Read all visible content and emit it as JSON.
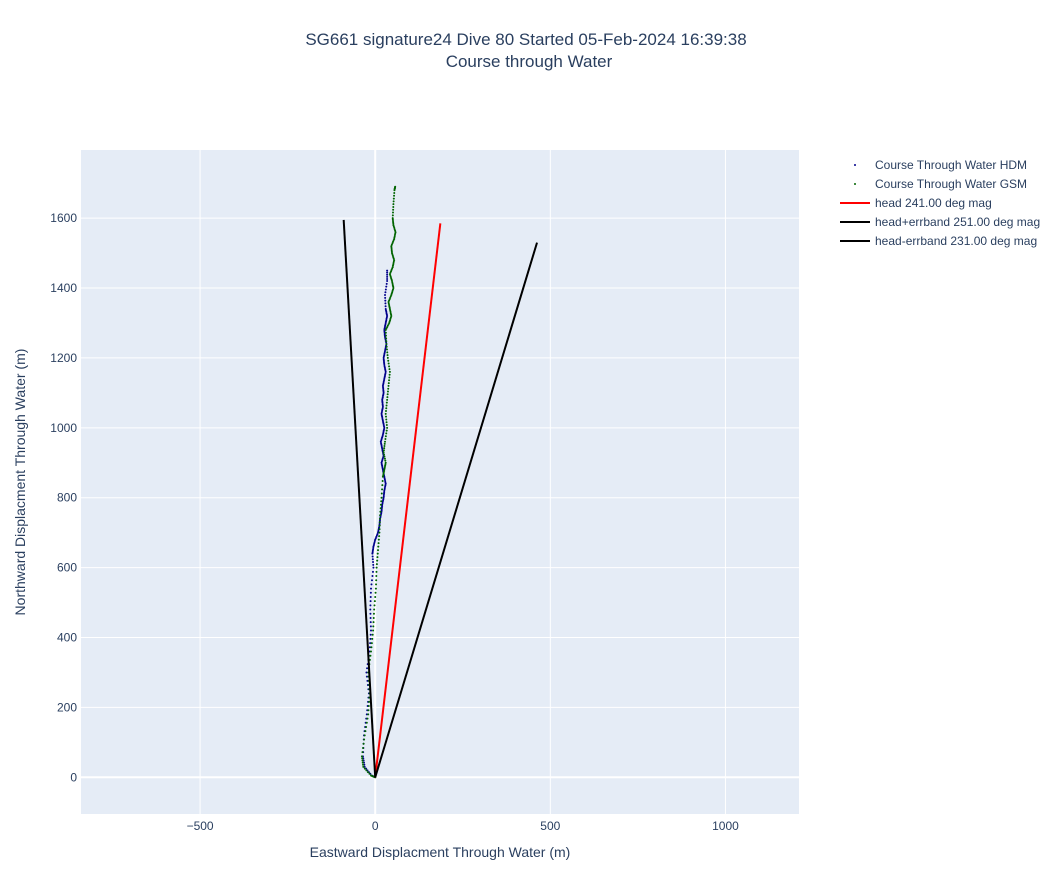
{
  "chart_data": {
    "type": "scatter",
    "title": "SG661 signature24 Dive 80 Started 05-Feb-2024 16:39:38",
    "subtitle": "Course through Water",
    "xlabel": "Eastward Displacment Through Water (m)",
    "ylabel": "Northward Displacment Through Water (m)",
    "xlim": [
      -840,
      1210
    ],
    "ylim": [
      -105,
      1795
    ],
    "xticks": [
      "−500",
      "0",
      "500",
      "1000"
    ],
    "xtick_values": [
      -500,
      0,
      500,
      1000
    ],
    "yticks": [
      "0",
      "200",
      "400",
      "600",
      "800",
      "1000",
      "1200",
      "1400",
      "1600"
    ],
    "ytick_values": [
      0,
      200,
      400,
      600,
      800,
      1000,
      1200,
      1400,
      1600
    ],
    "grid": true,
    "legend_position": "right",
    "series": [
      {
        "name": "Course Through Water HDM",
        "mode": "markers",
        "color": "#00008b",
        "x": [
          0,
          -10,
          -30,
          -35,
          -32,
          -24,
          -18,
          -25,
          -16,
          -12,
          -14,
          -12,
          -5,
          -8,
          -5,
          0,
          8,
          12,
          14,
          18,
          20,
          24,
          26,
          30,
          26,
          22,
          18,
          24,
          20,
          16,
          22,
          26,
          22,
          18,
          22,
          20,
          24,
          22,
          26,
          30,
          26,
          24,
          28,
          32,
          28,
          26,
          30,
          34,
          30,
          28,
          34,
          34
        ],
        "y": [
          0,
          5,
          30,
          60,
          120,
          180,
          240,
          300,
          360,
          420,
          480,
          540,
          600,
          640,
          660,
          680,
          700,
          720,
          740,
          760,
          780,
          800,
          820,
          840,
          860,
          880,
          900,
          920,
          940,
          960,
          980,
          1000,
          1020,
          1040,
          1060,
          1080,
          1100,
          1120,
          1140,
          1160,
          1180,
          1200,
          1220,
          1240,
          1260,
          1280,
          1300,
          1320,
          1340,
          1380,
          1420,
          1450
        ]
      },
      {
        "name": "Course Through Water GSM",
        "mode": "markers",
        "color": "#006400",
        "x": [
          0,
          -12,
          -34,
          -38,
          -30,
          -20,
          -16,
          -20,
          -12,
          -6,
          -3,
          2,
          4,
          8,
          12,
          14,
          18,
          22,
          26,
          30,
          24,
          28,
          34,
          30,
          34,
          38,
          42,
          36,
          32,
          30,
          40,
          46,
          42,
          38,
          46,
          52,
          48,
          42,
          50,
          54,
          48,
          46,
          54,
          58,
          52,
          50,
          52,
          55,
          57
        ],
        "y": [
          0,
          5,
          30,
          60,
          120,
          180,
          240,
          300,
          360,
          420,
          480,
          540,
          600,
          650,
          700,
          750,
          800,
          860,
          880,
          900,
          930,
          960,
          1000,
          1040,
          1080,
          1120,
          1160,
          1200,
          1240,
          1280,
          1300,
          1320,
          1340,
          1360,
          1380,
          1400,
          1420,
          1440,
          1460,
          1480,
          1500,
          1520,
          1540,
          1560,
          1580,
          1600,
          1640,
          1680,
          1690
        ]
      },
      {
        "name": "head 241.00 deg mag",
        "mode": "line",
        "color": "#ff0000",
        "x": [
          0,
          186
        ],
        "y": [
          0,
          1585
        ]
      },
      {
        "name": "head+errband 251.00 deg mag",
        "mode": "line",
        "color": "#000000",
        "x": [
          0,
          -90
        ],
        "y": [
          0,
          1595
        ]
      },
      {
        "name": "head-errband 231.00 deg mag",
        "mode": "line",
        "color": "#000000",
        "x": [
          0,
          462
        ],
        "y": [
          0,
          1530
        ]
      }
    ]
  }
}
